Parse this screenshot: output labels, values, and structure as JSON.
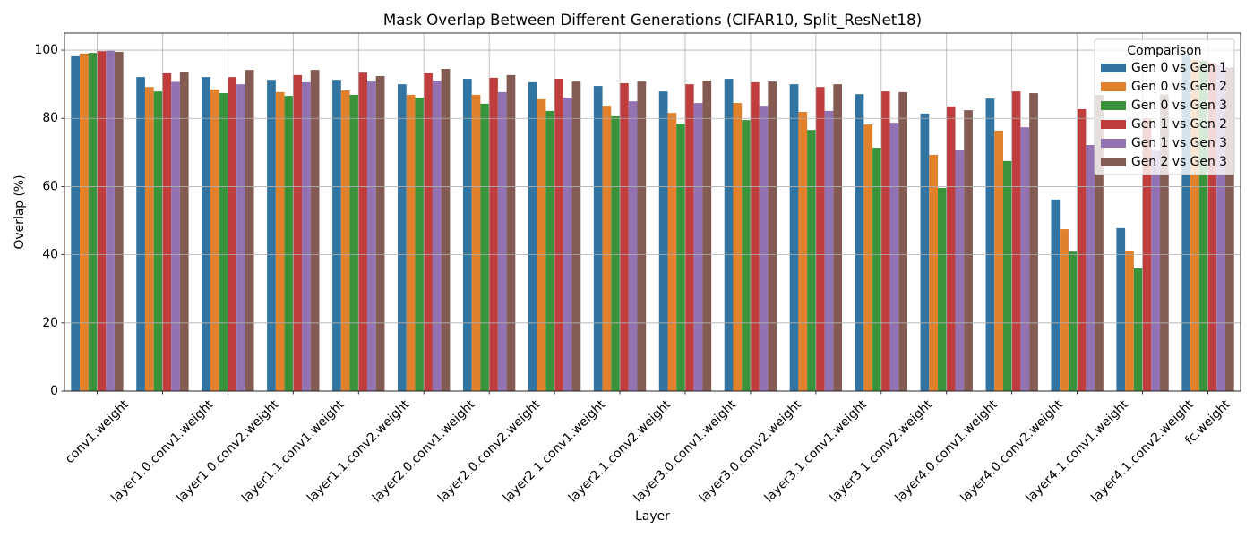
{
  "chart_data": {
    "type": "bar",
    "title": "Mask Overlap Between Different Generations (CIFAR10, Split_ResNet18)",
    "xlabel": "Layer",
    "ylabel": "Overlap (%)",
    "categories": [
      "conv1.weight",
      "layer1.0.conv1.weight",
      "layer1.0.conv2.weight",
      "layer1.1.conv1.weight",
      "layer1.1.conv2.weight",
      "layer2.0.conv1.weight",
      "layer2.0.conv2.weight",
      "layer2.1.conv1.weight",
      "layer2.1.conv2.weight",
      "layer3.0.conv1.weight",
      "layer3.0.conv2.weight",
      "layer3.1.conv1.weight",
      "layer3.1.conv2.weight",
      "layer4.0.conv1.weight",
      "layer4.0.conv2.weight",
      "layer4.1.conv1.weight",
      "layer4.1.conv2.weight",
      "fc.weight"
    ],
    "series": [
      {
        "name": "Gen 0 vs Gen 1",
        "color": "#3274a1",
        "values": [
          98.2,
          92.1,
          92.1,
          91.3,
          91.3,
          90.0,
          91.6,
          90.6,
          89.5,
          87.9,
          91.6,
          90.0,
          87.1,
          81.4,
          85.8,
          56.2,
          47.8,
          98.4
        ]
      },
      {
        "name": "Gen 0 vs Gen 2",
        "color": "#e1812c",
        "values": [
          99.0,
          89.2,
          88.5,
          87.7,
          88.2,
          86.9,
          86.9,
          85.6,
          83.7,
          81.6,
          84.5,
          81.9,
          78.2,
          69.3,
          76.4,
          47.5,
          41.2,
          97.1
        ]
      },
      {
        "name": "Gen 0 vs Gen 3",
        "color": "#3a923a",
        "values": [
          99.2,
          87.9,
          87.4,
          86.6,
          86.9,
          86.1,
          84.3,
          82.2,
          80.6,
          78.5,
          79.5,
          76.6,
          71.4,
          59.6,
          67.5,
          40.9,
          36.0,
          96.9
        ]
      },
      {
        "name": "Gen 1 vs Gen 2",
        "color": "#c03d3e",
        "values": [
          99.7,
          93.2,
          92.1,
          92.7,
          93.4,
          93.2,
          91.9,
          91.6,
          90.3,
          90.0,
          90.6,
          89.2,
          87.9,
          83.5,
          87.9,
          82.7,
          80.0,
          96.3
        ]
      },
      {
        "name": "Gen 1 vs Gen 3",
        "color": "#9372b2",
        "values": [
          99.8,
          90.7,
          90.0,
          90.6,
          90.8,
          91.1,
          87.7,
          86.1,
          85.0,
          84.5,
          83.7,
          82.2,
          78.7,
          70.6,
          77.4,
          72.2,
          70.5,
          95.6
        ]
      },
      {
        "name": "Gen 2 vs Gen 3",
        "color": "#845b53",
        "values": [
          99.5,
          93.7,
          94.2,
          94.2,
          92.4,
          94.5,
          92.7,
          90.8,
          90.8,
          91.1,
          90.8,
          90.0,
          87.7,
          82.4,
          87.4,
          86.9,
          87.0,
          94.9
        ]
      }
    ],
    "ylim": [
      0,
      105
    ],
    "yticks": [
      0,
      20,
      40,
      60,
      80,
      100
    ],
    "grid": true,
    "legend": {
      "title": "Comparison",
      "placement": "top-right"
    }
  }
}
